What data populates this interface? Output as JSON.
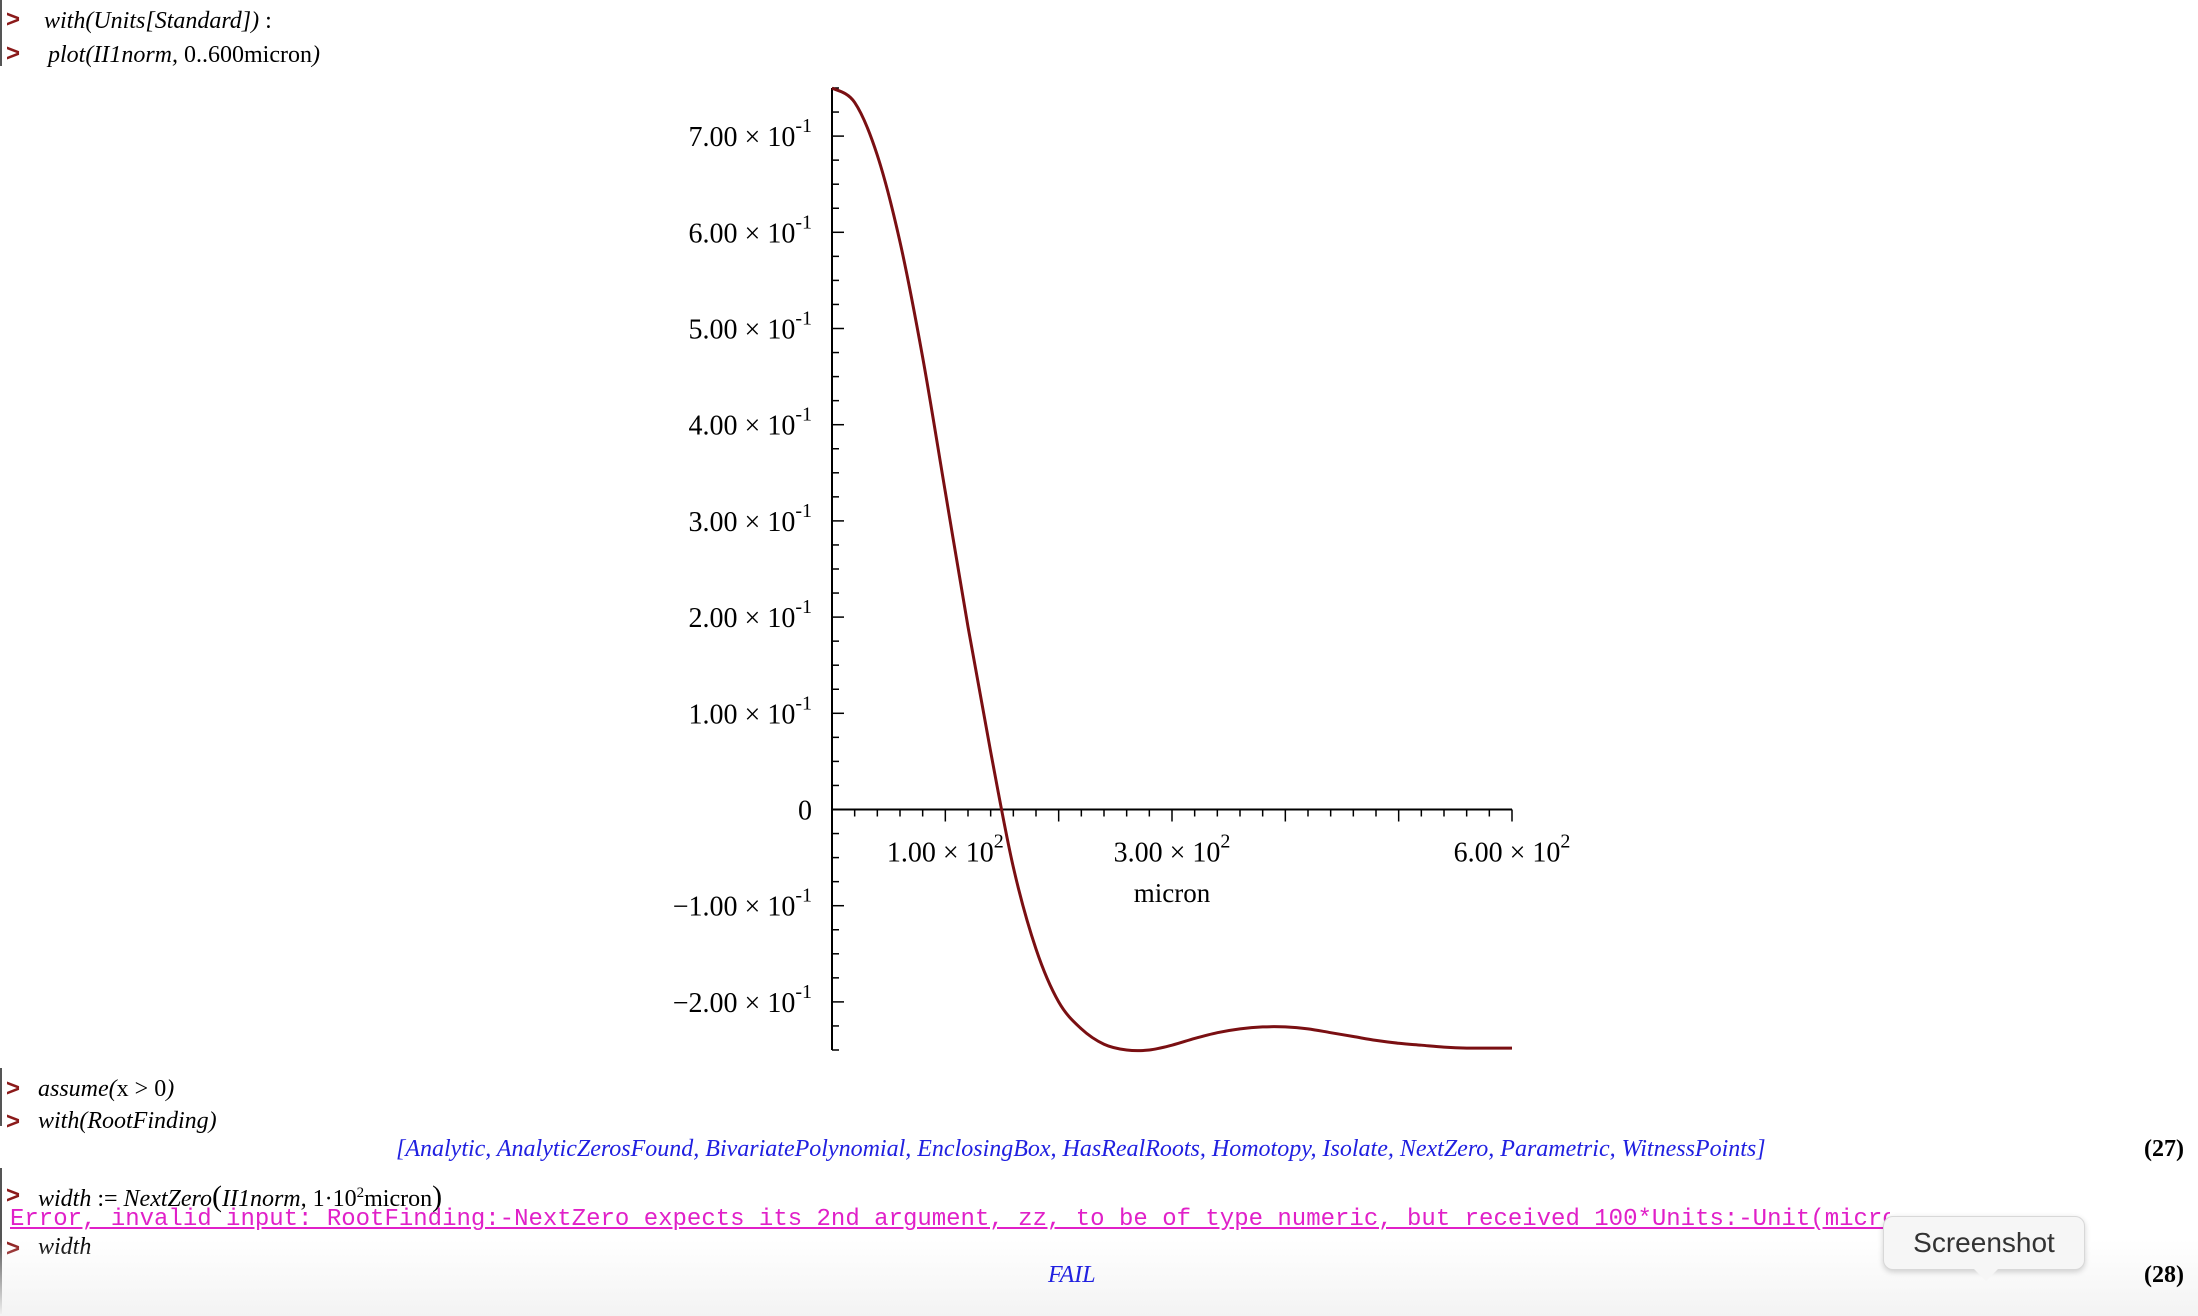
{
  "lines": {
    "l1": {
      "func": "with",
      "arg": "Units[Standard]",
      "suffix": ":"
    },
    "l2": {
      "func": "plot",
      "arg1": "II1norm",
      "range_start": "0",
      "range_sep": "..",
      "range_end": "600",
      "unit": "micron"
    },
    "l3": {
      "func": "assume",
      "expr": "x > 0"
    },
    "l4": {
      "func": "with",
      "arg": "RootFinding"
    },
    "out27": {
      "items": [
        "Analytic",
        "AnalyticZerosFound",
        "BivariatePolynomial",
        "EnclosingBox",
        "HasRealRoots",
        "Homotopy",
        "Isolate",
        "NextZero",
        "Parametric",
        "WitnessPoints"
      ],
      "text": "[Analytic, AnalyticZerosFound, BivariatePolynomial, EnclosingBox, HasRealRoots, Homotopy, Isolate, NextZero, Parametric, WitnessPoints]",
      "label": "(27)"
    },
    "l5": {
      "lhs": "width",
      "assign": ":=",
      "func": "NextZero",
      "arg1": "II1norm",
      "coef": "1·10",
      "exp": "2",
      "unit": "micron"
    },
    "error": "Error, invalid input: RootFinding:-NextZero expects its 2nd argument, zz, to be of type numeric, but received 100*Units:-Unit(micron)",
    "l6": {
      "expr": "width"
    },
    "out28": {
      "text": "FAIL",
      "label": "(28)"
    }
  },
  "prompt_symbol": ">",
  "tooltip": "Screenshot",
  "chart_data": {
    "type": "line",
    "xlabel": "micron",
    "xlim": [
      0,
      600
    ],
    "ylim": [
      -0.25,
      0.75
    ],
    "yticks": [
      {
        "value": 0.7,
        "mant": "7.00",
        "exp": "-1"
      },
      {
        "value": 0.6,
        "mant": "6.00",
        "exp": "-1"
      },
      {
        "value": 0.5,
        "mant": "5.00",
        "exp": "-1"
      },
      {
        "value": 0.4,
        "mant": "4.00",
        "exp": "-1"
      },
      {
        "value": 0.3,
        "mant": "3.00",
        "exp": "-1"
      },
      {
        "value": 0.2,
        "mant": "2.00",
        "exp": "-1"
      },
      {
        "value": 0.1,
        "mant": "1.00",
        "exp": "-1"
      },
      {
        "value": 0,
        "mant": "0",
        "exp": ""
      },
      {
        "value": -0.1,
        "mant": "−1.00",
        "exp": "-1"
      },
      {
        "value": -0.2,
        "mant": "−2.00",
        "exp": "-1"
      }
    ],
    "xticks": [
      {
        "value": 100,
        "mant": "1.00",
        "exp": "2"
      },
      {
        "value": 300,
        "mant": "3.00",
        "exp": "2"
      },
      {
        "value": 600,
        "mant": "6.00",
        "exp": "2"
      }
    ],
    "line_color": "#7a0f12",
    "series": [
      {
        "x": [
          0,
          20,
          40,
          60,
          80,
          100,
          120,
          140,
          160,
          180,
          200,
          220,
          240,
          260,
          280,
          300,
          320,
          340,
          360,
          380,
          400,
          420,
          440,
          460,
          480,
          500,
          520,
          540,
          560,
          580,
          600
        ],
        "y": [
          0.75,
          0.735,
          0.68,
          0.59,
          0.47,
          0.33,
          0.19,
          0.06,
          -0.06,
          -0.145,
          -0.2,
          -0.228,
          -0.244,
          -0.25,
          -0.25,
          -0.245,
          -0.238,
          -0.232,
          -0.228,
          -0.226,
          -0.226,
          -0.228,
          -0.232,
          -0.236,
          -0.24,
          -0.243,
          -0.245,
          -0.247,
          -0.248,
          -0.248,
          -0.248
        ]
      }
    ]
  }
}
